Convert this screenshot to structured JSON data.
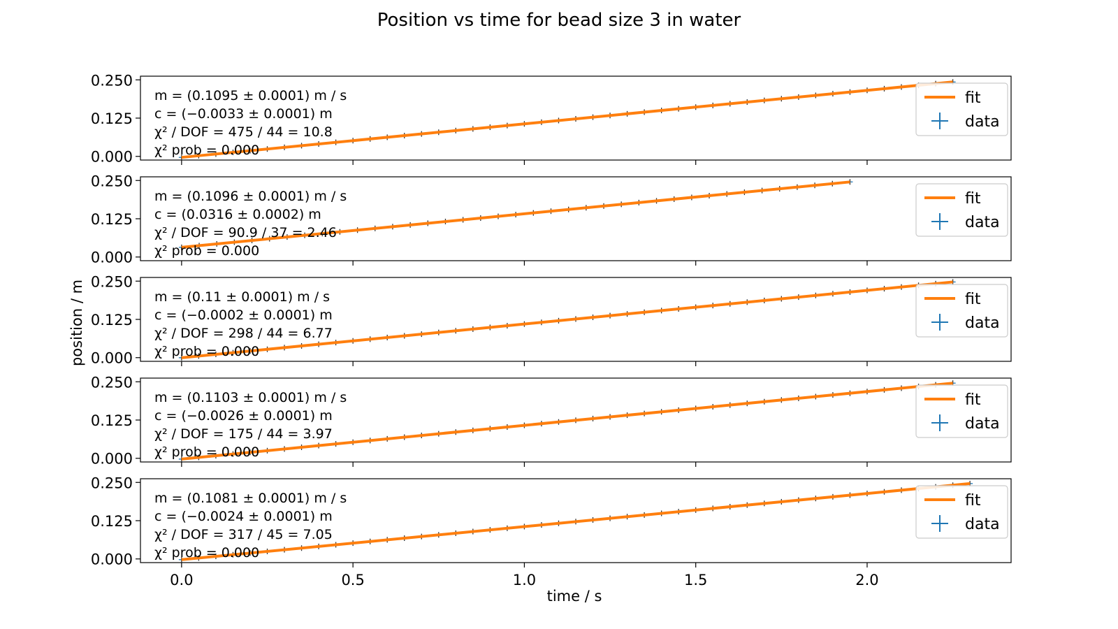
{
  "figure": {
    "title": "Position vs time for bead size 3 in water",
    "xlabel": "time / s",
    "ylabel": "position / m"
  },
  "colors": {
    "fit": "#ff7f0e",
    "data": "#1f77b4",
    "frame": "#000000",
    "legend_border": "#cccccc"
  },
  "chart_data": [
    {
      "type": "line",
      "xlim": [
        -0.12,
        2.42
      ],
      "ylim": [
        -0.012,
        0.262
      ],
      "xticks": [
        "0.0",
        "0.5",
        "1.0",
        "1.5",
        "2.0"
      ],
      "xtick_values": [
        0.0,
        0.5,
        1.0,
        1.5,
        2.0
      ],
      "yticks": [
        "0.000",
        "0.125",
        "0.250"
      ],
      "ytick_values": [
        0.0,
        0.125,
        0.25
      ],
      "grid": false,
      "legend": {
        "placement": "upper-right",
        "entries": [
          "fit",
          "data"
        ]
      },
      "annotations": [
        "m = (0.1095 ± 0.0001) m / s",
        "c = (−0.0033 ± 0.0001) m",
        "χ² / DOF = 475 / 44 = 10.8",
        "χ² prob = 0.000"
      ],
      "fit": {
        "m": 0.1095,
        "c": -0.0033
      },
      "data": {
        "x_start": 0.0,
        "x_end": 2.25,
        "n_points": 46
      }
    },
    {
      "type": "line",
      "xlim": [
        -0.12,
        2.42
      ],
      "ylim": [
        -0.012,
        0.262
      ],
      "xticks": [
        "0.0",
        "0.5",
        "1.0",
        "1.5",
        "2.0"
      ],
      "xtick_values": [
        0.0,
        0.5,
        1.0,
        1.5,
        2.0
      ],
      "yticks": [
        "0.000",
        "0.125",
        "0.250"
      ],
      "ytick_values": [
        0.0,
        0.125,
        0.25
      ],
      "grid": false,
      "legend": {
        "placement": "upper-right",
        "entries": [
          "fit",
          "data"
        ]
      },
      "annotations": [
        "m = (0.1096 ± 0.0001) m / s",
        "c = (0.0316 ± 0.0002) m",
        "χ² / DOF = 90.9 / 37 = 2.46",
        "χ² prob = 0.000"
      ],
      "fit": {
        "m": 0.1096,
        "c": 0.0316
      },
      "data": {
        "x_start": 0.0,
        "x_end": 1.95,
        "n_points": 39
      }
    },
    {
      "type": "line",
      "xlim": [
        -0.12,
        2.42
      ],
      "ylim": [
        -0.012,
        0.262
      ],
      "xticks": [
        "0.0",
        "0.5",
        "1.0",
        "1.5",
        "2.0"
      ],
      "xtick_values": [
        0.0,
        0.5,
        1.0,
        1.5,
        2.0
      ],
      "yticks": [
        "0.000",
        "0.125",
        "0.250"
      ],
      "ytick_values": [
        0.0,
        0.125,
        0.25
      ],
      "grid": false,
      "legend": {
        "placement": "upper-right",
        "entries": [
          "fit",
          "data"
        ]
      },
      "annotations": [
        "m = (0.11 ± 0.0001) m / s",
        "c = (−0.0002 ± 0.0001) m",
        "χ² / DOF = 298 / 44 = 6.77",
        "χ² prob = 0.000"
      ],
      "fit": {
        "m": 0.11,
        "c": -0.0002
      },
      "data": {
        "x_start": 0.0,
        "x_end": 2.25,
        "n_points": 46
      }
    },
    {
      "type": "line",
      "xlim": [
        -0.12,
        2.42
      ],
      "ylim": [
        -0.012,
        0.262
      ],
      "xticks": [
        "0.0",
        "0.5",
        "1.0",
        "1.5",
        "2.0"
      ],
      "xtick_values": [
        0.0,
        0.5,
        1.0,
        1.5,
        2.0
      ],
      "yticks": [
        "0.000",
        "0.125",
        "0.250"
      ],
      "ytick_values": [
        0.0,
        0.125,
        0.25
      ],
      "grid": false,
      "legend": {
        "placement": "upper-right",
        "entries": [
          "fit",
          "data"
        ]
      },
      "annotations": [
        "m = (0.1103 ± 0.0001) m / s",
        "c = (−0.0026 ± 0.0001) m",
        "χ² / DOF = 175 / 44 = 3.97",
        "χ² prob = 0.000"
      ],
      "fit": {
        "m": 0.1103,
        "c": -0.0026
      },
      "data": {
        "x_start": 0.0,
        "x_end": 2.25,
        "n_points": 46
      }
    },
    {
      "type": "line",
      "xlim": [
        -0.12,
        2.42
      ],
      "ylim": [
        -0.012,
        0.262
      ],
      "xticks": [
        "0.0",
        "0.5",
        "1.0",
        "1.5",
        "2.0"
      ],
      "xtick_values": [
        0.0,
        0.5,
        1.0,
        1.5,
        2.0
      ],
      "yticks": [
        "0.000",
        "0.125",
        "0.250"
      ],
      "ytick_values": [
        0.0,
        0.125,
        0.25
      ],
      "grid": false,
      "legend": {
        "placement": "upper-right",
        "entries": [
          "fit",
          "data"
        ]
      },
      "annotations": [
        "m = (0.1081 ± 0.0001) m / s",
        "c = (−0.0024 ± 0.0001) m",
        "χ² / DOF = 317 / 45 = 7.05",
        "χ² prob = 0.000"
      ],
      "fit": {
        "m": 0.1081,
        "c": -0.0024
      },
      "data": {
        "x_start": 0.0,
        "x_end": 2.3,
        "n_points": 47
      }
    }
  ]
}
